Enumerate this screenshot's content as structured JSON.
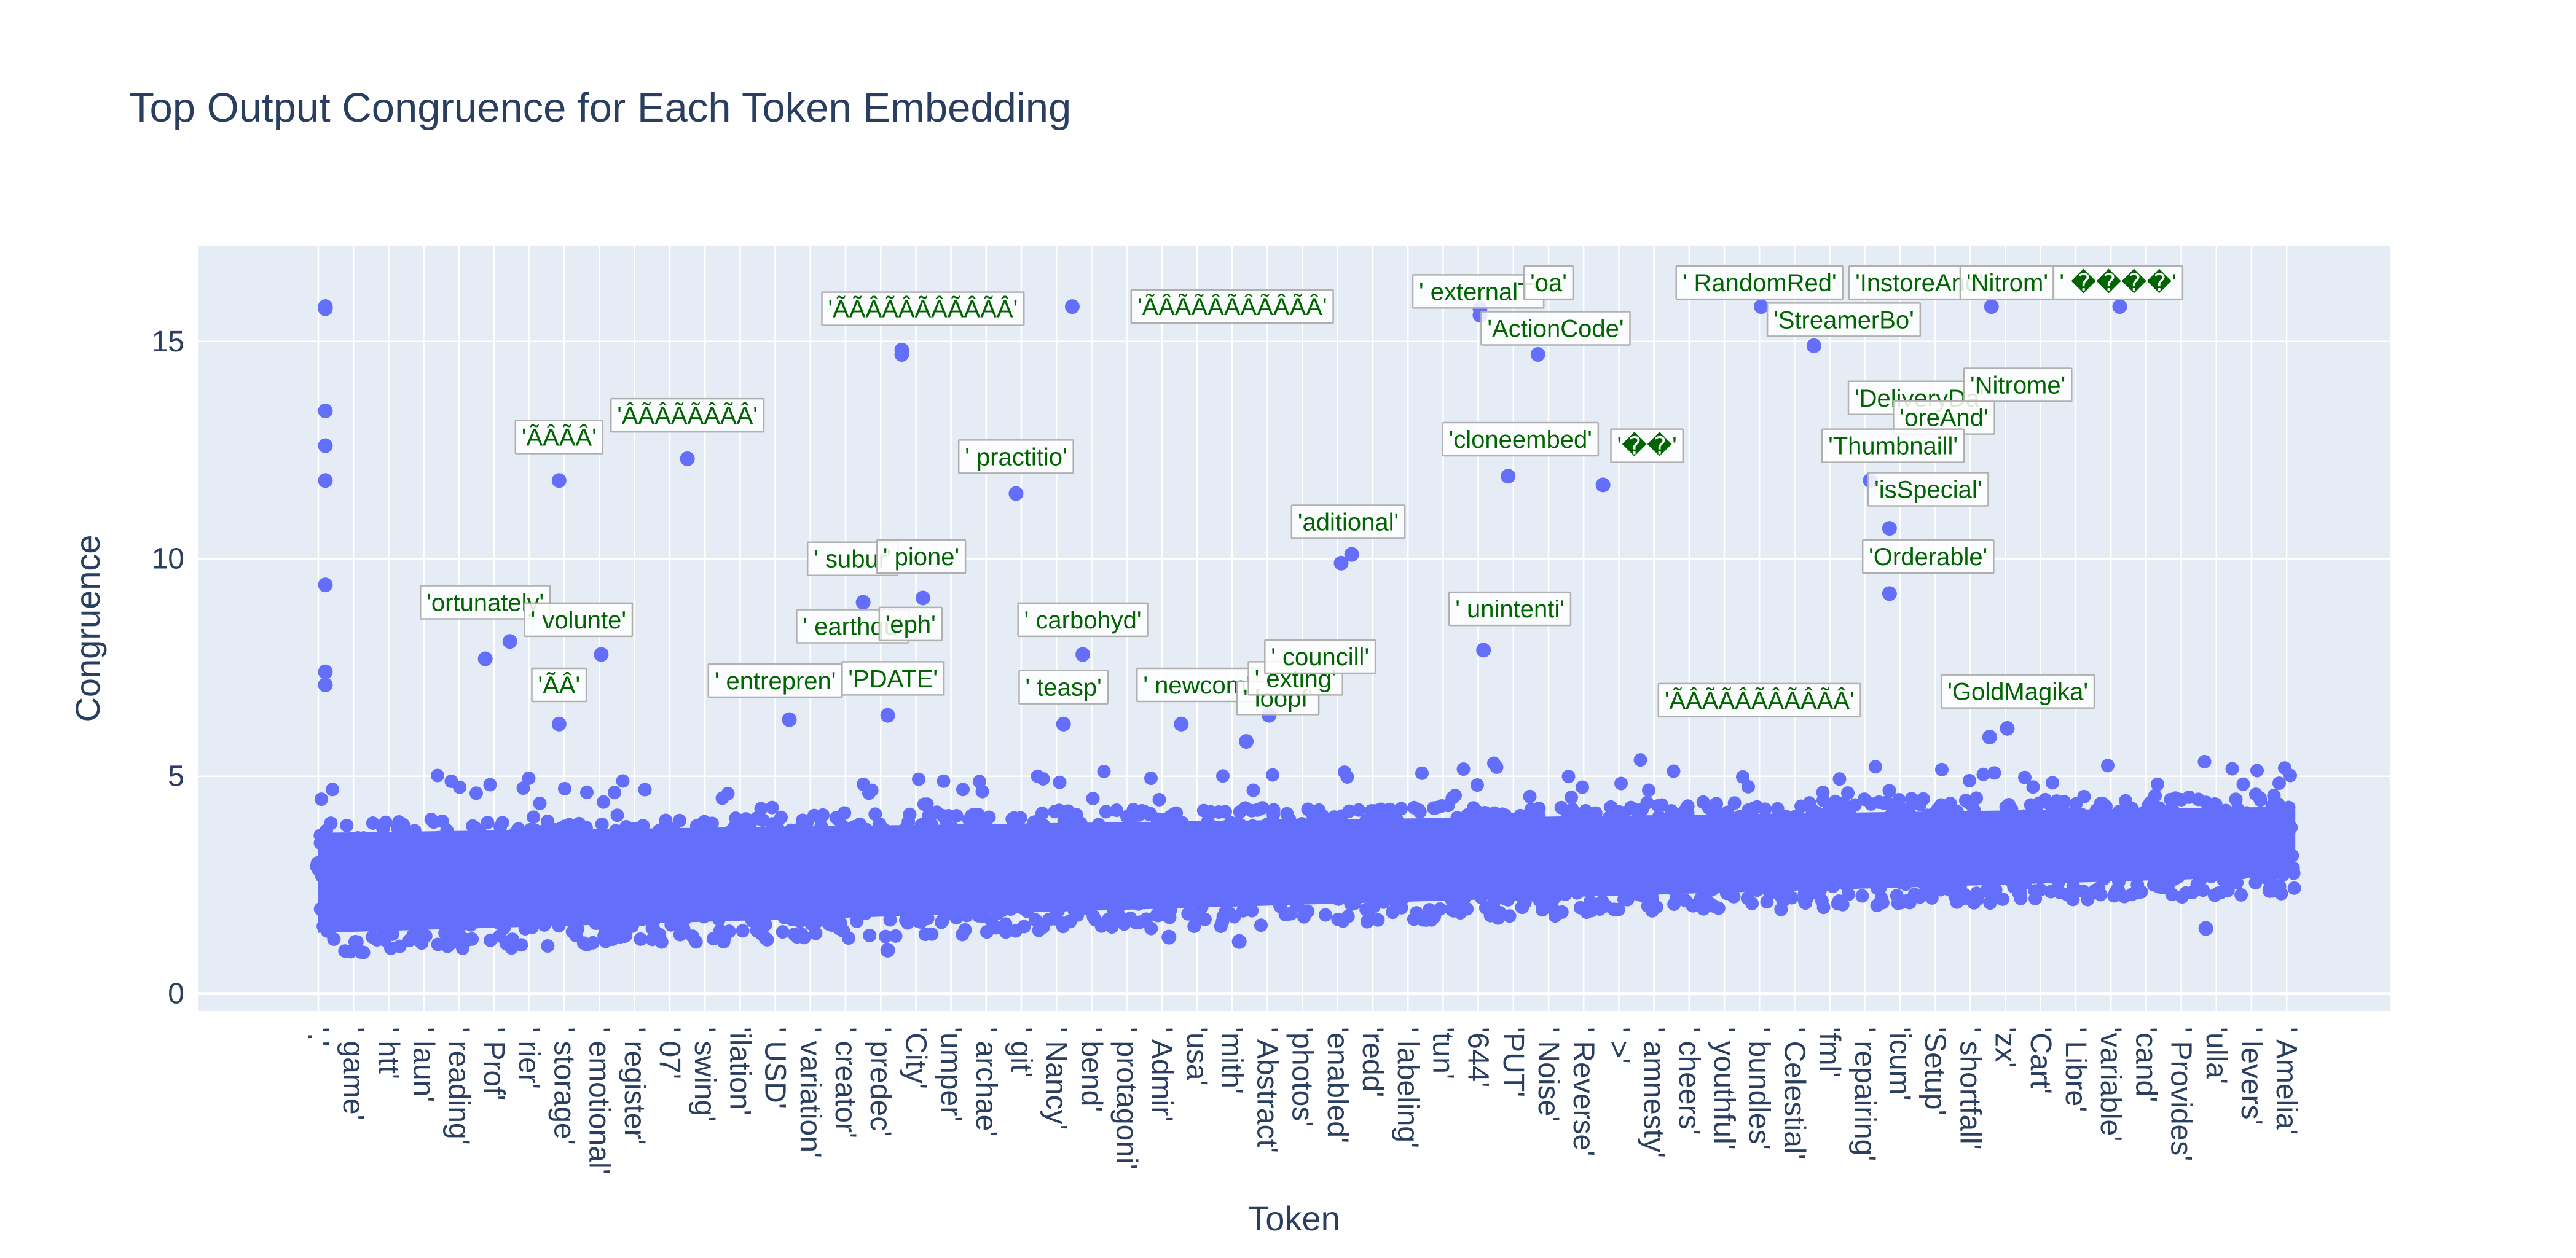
{
  "colors": {
    "marker": "#636efa",
    "plot_bg": "#e5ecf6",
    "grid": "#ffffff",
    "text": "#2a3f5f",
    "annotation": "#006400"
  },
  "chart_data": {
    "type": "scatter",
    "title": "Top Output Congruence for Each Token Embedding",
    "xlabel": "Token",
    "ylabel": "Congruence",
    "ylim": [
      -0.4,
      17.2
    ],
    "yticks": [
      0,
      5,
      10,
      15
    ],
    "grid": true,
    "legend": "none",
    "x_tick_labels": [
      "'.'",
      "' game'",
      "' htt'",
      "' laun'",
      "' reading'",
      "' Prof'",
      "' rier'",
      "' storage'",
      "' emotional'",
      "' register'",
      "' 07'",
      "' swing'",
      "'ilation'",
      "' USD'",
      "' variation'",
      "' creator'",
      "' predec'",
      "'City'",
      "'umper'",
      "' archae'",
      "' git'",
      "' Nancy'",
      "' bend'",
      "' protagoni'",
      "' Admir'",
      "'usa'",
      "'mith'",
      "' Abstract'",
      "'photos'",
      "'enabled'",
      "'redd'",
      "' labeling'",
      "'tun'",
      "'644'",
      "'PUT'",
      "' Noise'",
      "' Reverse'",
      "' >'",
      "' amnesty'",
      "' cheers'",
      "' youthful'",
      "' bundles'",
      "' Celestial'",
      "'fml'",
      "' repairing'",
      "'icum'",
      "'Setup'",
      "' shortfall'",
      "'zx'",
      "'Cart'",
      "' Libre'",
      "'variable'",
      "'cand'",
      "' Provides'",
      "'ulla'",
      "' levers'",
      "' Amelia'"
    ],
    "outliers": [
      {
        "x": 0.2,
        "y": 15.8
      },
      {
        "x": 0.2,
        "y": 15.75
      },
      {
        "x": 0.2,
        "y": 13.4
      },
      {
        "x": 0.2,
        "y": 12.6
      },
      {
        "x": 0.2,
        "y": 11.8
      },
      {
        "x": 0.2,
        "y": 9.4
      },
      {
        "x": 0.2,
        "y": 7.4
      },
      {
        "x": 0.2,
        "y": 7.1
      },
      {
        "x": 4.75,
        "y": 7.7
      },
      {
        "x": 5.45,
        "y": 8.1
      },
      {
        "x": 6.85,
        "y": 11.8
      },
      {
        "x": 6.85,
        "y": 6.2
      },
      {
        "x": 8.05,
        "y": 7.8
      },
      {
        "x": 10.5,
        "y": 12.3
      },
      {
        "x": 13.4,
        "y": 6.3
      },
      {
        "x": 15.5,
        "y": 9.0
      },
      {
        "x": 16.2,
        "y": 6.4
      },
      {
        "x": 16.6,
        "y": 14.8
      },
      {
        "x": 16.6,
        "y": 14.7
      },
      {
        "x": 17.2,
        "y": 9.1
      },
      {
        "x": 19.85,
        "y": 11.5
      },
      {
        "x": 21.45,
        "y": 15.8
      },
      {
        "x": 21.2,
        "y": 6.2
      },
      {
        "x": 21.75,
        "y": 7.8
      },
      {
        "x": 24.55,
        "y": 6.2
      },
      {
        "x": 26.4,
        "y": 5.8
      },
      {
        "x": 27.05,
        "y": 6.4
      },
      {
        "x": 29.1,
        "y": 9.9
      },
      {
        "x": 29.4,
        "y": 10.1
      },
      {
        "x": 33.05,
        "y": 15.75
      },
      {
        "x": 33.05,
        "y": 15.6
      },
      {
        "x": 33.15,
        "y": 7.9
      },
      {
        "x": 33.85,
        "y": 11.9
      },
      {
        "x": 34.7,
        "y": 14.7
      },
      {
        "x": 36.55,
        "y": 11.7
      },
      {
        "x": 41.05,
        "y": 15.8
      },
      {
        "x": 42.55,
        "y": 14.9
      },
      {
        "x": 44.15,
        "y": 11.8
      },
      {
        "x": 44.7,
        "y": 10.7
      },
      {
        "x": 44.7,
        "y": 9.2
      },
      {
        "x": 47.55,
        "y": 5.9
      },
      {
        "x": 48.05,
        "y": 6.1
      },
      {
        "x": 47.6,
        "y": 15.8
      },
      {
        "x": 51.25,
        "y": 15.8
      },
      {
        "x": 53.7,
        "y": 1.5
      },
      {
        "x": 16.2,
        "y": 1.0
      },
      {
        "x": 26.2,
        "y": 1.2
      },
      {
        "x": 24.2,
        "y": 1.3
      }
    ],
    "annotations": [
      {
        "text": "'ortunately'",
        "x": 4.75,
        "y": 9.0
      },
      {
        "text": "' volunte'",
        "x": 7.4,
        "y": 8.6
      },
      {
        "text": "'ÃÂ'",
        "x": 6.85,
        "y": 7.1
      },
      {
        "text": "'ÃÂÃÂ'",
        "x": 6.85,
        "y": 12.8
      },
      {
        "text": "'ÂÃÂÃÃÂÃÂ'",
        "x": 10.5,
        "y": 13.3
      },
      {
        "text": "' entrepren'",
        "x": 13.0,
        "y": 7.2
      },
      {
        "text": "' subur'",
        "x": 15.2,
        "y": 10.0
      },
      {
        "text": "' pione'",
        "x": 17.15,
        "y": 10.05
      },
      {
        "text": "' earthqu'",
        "x": 15.2,
        "y": 8.45
      },
      {
        "text": "'eph'",
        "x": 16.85,
        "y": 8.5
      },
      {
        "text": "'PDATE'",
        "x": 16.35,
        "y": 7.25
      },
      {
        "text": "'ÃÃÂÃÂÃÂÃÂÃÂ'",
        "x": 17.2,
        "y": 15.75
      },
      {
        "text": "' practitio'",
        "x": 19.85,
        "y": 12.35
      },
      {
        "text": "' carbohyd'",
        "x": 21.75,
        "y": 8.6
      },
      {
        "text": "' teasp'",
        "x": 21.2,
        "y": 7.05
      },
      {
        "text": "' newcom'",
        "x": 25.0,
        "y": 7.1
      },
      {
        "text": "'ÃÂÃÃÂÃÂÃÂÃÂ'",
        "x": 26.0,
        "y": 15.8
      },
      {
        "text": "' loopf'",
        "x": 27.3,
        "y": 6.8
      },
      {
        "text": "' exting'",
        "x": 27.8,
        "y": 7.25
      },
      {
        "text": "' councill'",
        "x": 28.5,
        "y": 7.75
      },
      {
        "text": "'aditional'",
        "x": 29.3,
        "y": 10.85
      },
      {
        "text": "' externalT'",
        "x": 33.0,
        "y": 16.15
      },
      {
        "text": "'oa'",
        "x": 35.0,
        "y": 16.35
      },
      {
        "text": "'ActionCode'",
        "x": 35.2,
        "y": 15.3
      },
      {
        "text": "'cloneembed'",
        "x": 34.2,
        "y": 12.75
      },
      {
        "text": "'��'",
        "x": 37.8,
        "y": 12.6
      },
      {
        "text": "' unintenti'",
        "x": 33.9,
        "y": 8.85
      },
      {
        "text": "' RandomRed'",
        "x": 41.0,
        "y": 16.35
      },
      {
        "text": "'StreamerBo'",
        "x": 43.4,
        "y": 15.5
      },
      {
        "text": "'InstoreAnd'",
        "x": 45.55,
        "y": 16.35
      },
      {
        "text": "'Nitrom'",
        "x": 48.05,
        "y": 16.35
      },
      {
        "text": "' ����'",
        "x": 51.2,
        "y": 16.35
      },
      {
        "text": "'DeliveryDa'",
        "x": 45.55,
        "y": 13.7
      },
      {
        "text": "'oreAnd'",
        "x": 46.25,
        "y": 13.25
      },
      {
        "text": "'Nitrome'",
        "x": 48.35,
        "y": 14.0
      },
      {
        "text": "'Thumbnaill'",
        "x": 44.8,
        "y": 12.6
      },
      {
        "text": "'isSpecial'",
        "x": 45.8,
        "y": 11.6
      },
      {
        "text": "'Orderable'",
        "x": 45.8,
        "y": 10.05
      },
      {
        "text": "'GoldMagika'",
        "x": 48.35,
        "y": 6.95
      },
      {
        "text": "'ÃÂÃÃÂÃÂÃÂÃÂ'",
        "x": 41.0,
        "y": 6.75
      }
    ]
  }
}
